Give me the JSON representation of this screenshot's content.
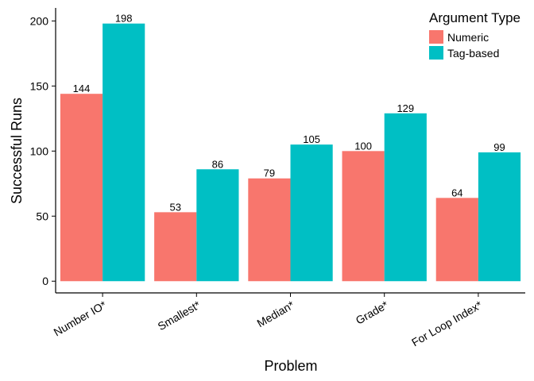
{
  "chart_data": {
    "type": "bar",
    "xlabel": "Problem",
    "ylabel": "Successful Runs",
    "categories": [
      "Number IO*",
      "Smallest*",
      "Median*",
      "Grade*",
      "For Loop Index*"
    ],
    "series": [
      {
        "name": "Numeric",
        "color": "#F8766D",
        "values": [
          144,
          53,
          79,
          100,
          64
        ]
      },
      {
        "name": "Tag-based",
        "color": "#00BFC4",
        "values": [
          198,
          86,
          105,
          129,
          99
        ]
      }
    ],
    "yticks": [
      0,
      50,
      100,
      150,
      200
    ],
    "ylim": [
      -9,
      210
    ],
    "grid": false,
    "legend": {
      "title": "Argument Type",
      "position": "top-right"
    }
  }
}
